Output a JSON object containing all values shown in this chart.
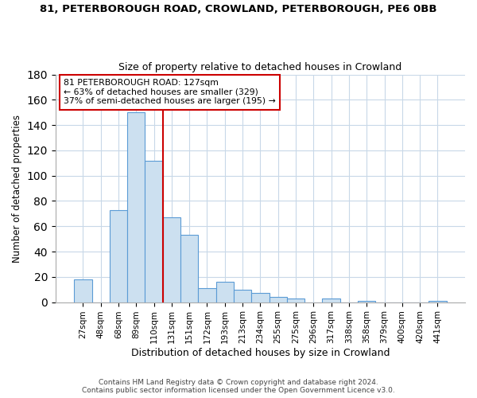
{
  "title": "81, PETERBOROUGH ROAD, CROWLAND, PETERBOROUGH, PE6 0BB",
  "subtitle": "Size of property relative to detached houses in Crowland",
  "xlabel": "Distribution of detached houses by size in Crowland",
  "ylabel": "Number of detached properties",
  "bar_labels": [
    "27sqm",
    "48sqm",
    "68sqm",
    "89sqm",
    "110sqm",
    "131sqm",
    "151sqm",
    "172sqm",
    "193sqm",
    "213sqm",
    "234sqm",
    "255sqm",
    "275sqm",
    "296sqm",
    "317sqm",
    "338sqm",
    "358sqm",
    "379sqm",
    "400sqm",
    "420sqm",
    "441sqm"
  ],
  "bar_values": [
    18,
    0,
    73,
    150,
    112,
    67,
    53,
    11,
    16,
    10,
    7,
    4,
    3,
    0,
    3,
    0,
    1,
    0,
    0,
    0,
    1
  ],
  "bar_color": "#cce0f0",
  "bar_edge_color": "#5b9bd5",
  "vline_color": "#cc0000",
  "annotation_text": "81 PETERBOROUGH ROAD: 127sqm\n← 63% of detached houses are smaller (329)\n37% of semi-detached houses are larger (195) →",
  "annotation_box_edge": "#cc0000",
  "ylim": [
    0,
    180
  ],
  "yticks": [
    0,
    20,
    40,
    60,
    80,
    100,
    120,
    140,
    160,
    180
  ],
  "footer_line1": "Contains HM Land Registry data © Crown copyright and database right 2024.",
  "footer_line2": "Contains public sector information licensed under the Open Government Licence v3.0.",
  "bg_color": "#ffffff",
  "grid_color": "#c8d8e8",
  "title_fontsize": 9.5,
  "subtitle_fontsize": 9.0,
  "xlabel_fontsize": 9.0,
  "ylabel_fontsize": 8.5,
  "tick_fontsize": 7.5,
  "footer_fontsize": 6.5
}
